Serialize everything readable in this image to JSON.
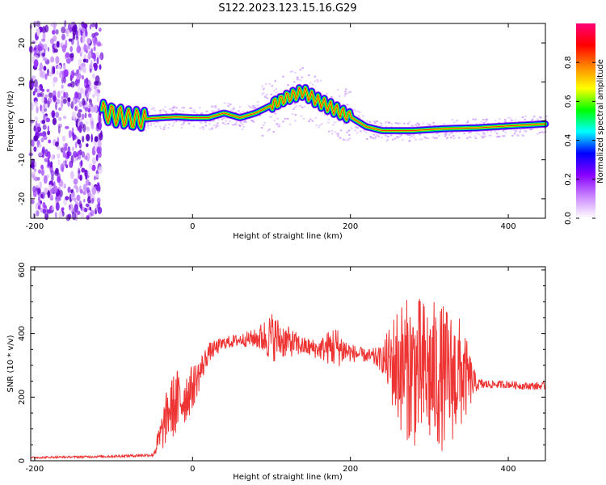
{
  "title": "S122.2023.123.15.16.G29",
  "chart_data": [
    {
      "type": "heatmap",
      "xlabel": "Height of straight line (km)",
      "ylabel": "Frequency (Hz)",
      "xlim": [
        -205,
        447
      ],
      "ylim": [
        -25,
        25
      ],
      "x_ticks": [
        -200,
        0,
        200,
        400
      ],
      "y_ticks": [
        -20,
        -10,
        0,
        10,
        20
      ],
      "colorbar": {
        "label": "Normalized spectral amplitude",
        "range": [
          0,
          1
        ],
        "ticks": [
          "0.0",
          "0.2",
          "0.4",
          "0.6",
          "0.8"
        ],
        "colors": [
          "#ffffff",
          "#cc88ff",
          "#8800ff",
          "#0000ff",
          "#00ffff",
          "#00ff00",
          "#ffff00",
          "#ff8800",
          "#ff0000",
          "#ff0077"
        ]
      },
      "noise_region_x": [
        -205,
        -115
      ],
      "ridge": {
        "x": [
          -115,
          -100,
          -90,
          -80,
          -60,
          -40,
          -20,
          0,
          20,
          40,
          60,
          80,
          100,
          120,
          140,
          160,
          180,
          200,
          220,
          240,
          280,
          320,
          360,
          400,
          447
        ],
        "y": [
          2.5,
          1.5,
          1.2,
          0.5,
          0.5,
          0.8,
          1.0,
          0.8,
          0.8,
          2,
          0.8,
          2,
          4,
          6,
          7.5,
          5,
          3,
          1,
          -1.5,
          -2.5,
          -2.5,
          -2.0,
          -1.8,
          -1.3,
          -0.8
        ]
      }
    },
    {
      "type": "line",
      "xlabel": "Height of straight line (km)",
      "ylabel": "SNR (10 * v/v)",
      "xlim": [
        -205,
        447
      ],
      "ylim": [
        0,
        610
      ],
      "x_ticks": [
        -200,
        0,
        200,
        400
      ],
      "y_ticks": [
        0,
        200,
        400,
        600
      ],
      "color": "#ee3333",
      "x": [
        -205,
        -150,
        -100,
        -50,
        -40,
        -30,
        -20,
        -10,
        0,
        10,
        20,
        40,
        60,
        80,
        100,
        120,
        140,
        160,
        180,
        200,
        220,
        240,
        260,
        280,
        300,
        320,
        340,
        360,
        380,
        400,
        420,
        447
      ],
      "values": [
        10,
        12,
        14,
        18,
        80,
        160,
        180,
        200,
        230,
        280,
        340,
        370,
        380,
        385,
        390,
        375,
        360,
        350,
        360,
        340,
        330,
        320,
        300,
        280,
        270,
        260,
        270,
        240,
        240,
        240,
        235,
        235
      ],
      "spread": [
        3,
        3,
        4,
        5,
        60,
        90,
        110,
        90,
        70,
        50,
        30,
        20,
        20,
        30,
        80,
        50,
        30,
        30,
        70,
        30,
        20,
        40,
        200,
        240,
        240,
        230,
        180,
        20,
        12,
        12,
        12,
        12
      ]
    }
  ]
}
